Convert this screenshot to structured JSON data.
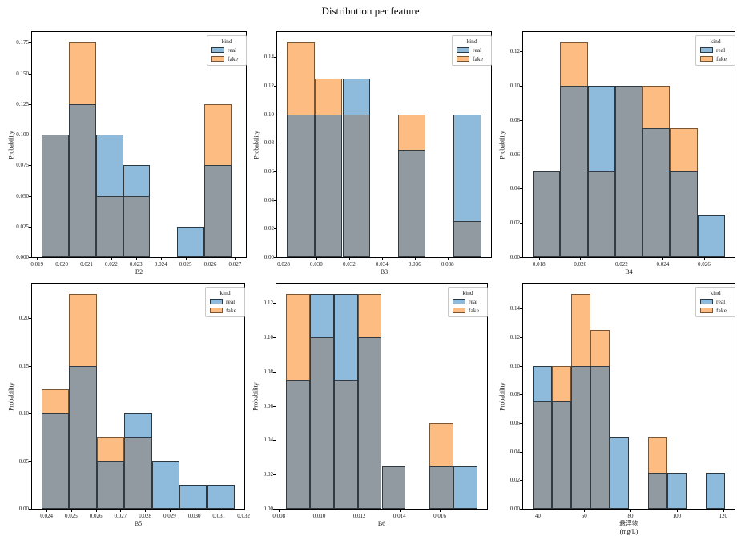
{
  "title": "Distribution per feature",
  "ylabel": "Probability",
  "legend": {
    "title": "kind",
    "entries": [
      {
        "label": "real",
        "key": "real"
      },
      {
        "label": "fake",
        "key": "fake"
      }
    ]
  },
  "colors": {
    "real": "#8ebbdb",
    "fake": "#fdbc82",
    "overlap": "#909aa0",
    "real_edge": "#2c3840",
    "fake_edge": "#7b5532",
    "overlap_edge": "#333b42",
    "spine": "#000000",
    "legend_border": "#c9c9c9"
  },
  "chart_data": [
    {
      "type": "bar",
      "feature": "B2",
      "xlabel_lines": [
        "B2"
      ],
      "ylabel": "Probability",
      "xlim": [
        0.0188,
        0.02744
      ],
      "ylim": [
        0,
        0.18375
      ],
      "grid": false,
      "legend_position": "upper right",
      "xticks": [
        {
          "label": "0.019",
          "v": 0.019
        },
        {
          "label": "0.020",
          "v": 0.02
        },
        {
          "label": "0.021",
          "v": 0.021
        },
        {
          "label": "0.022",
          "v": 0.022
        },
        {
          "label": "0.023",
          "v": 0.023
        },
        {
          "label": "0.024",
          "v": 0.024
        },
        {
          "label": "0.025",
          "v": 0.025
        },
        {
          "label": "0.026",
          "v": 0.026
        },
        {
          "label": "0.027",
          "v": 0.027
        }
      ],
      "yticks": [
        {
          "label": "0.000",
          "v": 0
        },
        {
          "label": "0.025",
          "v": 0.025
        },
        {
          "label": "0.050",
          "v": 0.05
        },
        {
          "label": "0.075",
          "v": 0.075
        },
        {
          "label": "0.100",
          "v": 0.1
        },
        {
          "label": "0.125",
          "v": 0.125
        },
        {
          "label": "0.150",
          "v": 0.15
        },
        {
          "label": "0.175",
          "v": 0.175
        }
      ],
      "bins": [
        {
          "x0": 0.0192,
          "x1": 0.02029,
          "real": 0.1,
          "fake": 0.1
        },
        {
          "x0": 0.02029,
          "x1": 0.02139,
          "real": 0.125,
          "fake": 0.175
        },
        {
          "x0": 0.02139,
          "x1": 0.02248,
          "real": 0.1,
          "fake": 0.05
        },
        {
          "x0": 0.02248,
          "x1": 0.02357,
          "real": 0.075,
          "fake": 0.05
        },
        {
          "x0": 0.02467,
          "x1": 0.02576,
          "real": 0.025,
          "fake": 0
        },
        {
          "x0": 0.02576,
          "x1": 0.02685,
          "real": 0.075,
          "fake": 0.125
        }
      ]
    },
    {
      "type": "bar",
      "feature": "B3",
      "xlabel_lines": [
        "B3"
      ],
      "ylabel": "Probability",
      "xlim": [
        0.02761,
        0.04065
      ],
      "ylim": [
        0,
        0.1575
      ],
      "grid": false,
      "legend_position": "upper right",
      "xticks": [
        {
          "label": "0.028",
          "v": 0.028
        },
        {
          "label": "0.030",
          "v": 0.03
        },
        {
          "label": "0.032",
          "v": 0.032
        },
        {
          "label": "0.034",
          "v": 0.034
        },
        {
          "label": "0.036",
          "v": 0.036
        },
        {
          "label": "0.038",
          "v": 0.038
        }
      ],
      "yticks": [
        {
          "label": "0.00",
          "v": 0
        },
        {
          "label": "0.02",
          "v": 0.02
        },
        {
          "label": "0.04",
          "v": 0.04
        },
        {
          "label": "0.06",
          "v": 0.06
        },
        {
          "label": "0.08",
          "v": 0.08
        },
        {
          "label": "0.10",
          "v": 0.1
        },
        {
          "label": "0.12",
          "v": 0.12
        },
        {
          "label": "0.14",
          "v": 0.14
        }
      ],
      "bins": [
        {
          "x0": 0.0282,
          "x1": 0.02989,
          "real": 0.1,
          "fake": 0.15
        },
        {
          "x0": 0.02989,
          "x1": 0.03159,
          "real": 0.1,
          "fake": 0.125
        },
        {
          "x0": 0.03159,
          "x1": 0.03328,
          "real": 0.125,
          "fake": 0.1
        },
        {
          "x0": 0.03498,
          "x1": 0.03667,
          "real": 0.075,
          "fake": 0.1
        },
        {
          "x0": 0.03837,
          "x1": 0.04006,
          "real": 0.1,
          "fake": 0.025
        }
      ]
    },
    {
      "type": "bar",
      "feature": "B4",
      "xlabel_lines": [
        "B4"
      ],
      "ylabel": "Probability",
      "xlim": [
        0.01723,
        0.02748
      ],
      "ylim": [
        0,
        0.13125
      ],
      "grid": false,
      "legend_position": "upper right",
      "xticks": [
        {
          "label": "0.018",
          "v": 0.018
        },
        {
          "label": "0.020",
          "v": 0.02
        },
        {
          "label": "0.022",
          "v": 0.022
        },
        {
          "label": "0.024",
          "v": 0.024
        },
        {
          "label": "0.026",
          "v": 0.026
        }
      ],
      "yticks": [
        {
          "label": "0.00",
          "v": 0
        },
        {
          "label": "0.02",
          "v": 0.02
        },
        {
          "label": "0.04",
          "v": 0.04
        },
        {
          "label": "0.06",
          "v": 0.06
        },
        {
          "label": "0.08",
          "v": 0.08
        },
        {
          "label": "0.10",
          "v": 0.1
        },
        {
          "label": "0.12",
          "v": 0.12
        }
      ],
      "bins": [
        {
          "x0": 0.0177,
          "x1": 0.01903,
          "real": 0.05,
          "fake": 0.05
        },
        {
          "x0": 0.01903,
          "x1": 0.02036,
          "real": 0.1,
          "fake": 0.125
        },
        {
          "x0": 0.02036,
          "x1": 0.02169,
          "real": 0.1,
          "fake": 0.05
        },
        {
          "x0": 0.02169,
          "x1": 0.02302,
          "real": 0.1,
          "fake": 0.1
        },
        {
          "x0": 0.02302,
          "x1": 0.02435,
          "real": 0.075,
          "fake": 0.1
        },
        {
          "x0": 0.02435,
          "x1": 0.02568,
          "real": 0.05,
          "fake": 0.075
        },
        {
          "x0": 0.02568,
          "x1": 0.02701,
          "real": 0.025,
          "fake": 0
        }
      ]
    },
    {
      "type": "bar",
      "feature": "B5",
      "xlabel_lines": [
        "B5"
      ],
      "ylabel": "Probability",
      "xlim": [
        0.02341,
        0.03203
      ],
      "ylim": [
        0,
        0.23625
      ],
      "grid": false,
      "legend_position": "upper right",
      "xticks": [
        {
          "label": "0.024",
          "v": 0.024
        },
        {
          "label": "0.025",
          "v": 0.025
        },
        {
          "label": "0.026",
          "v": 0.026
        },
        {
          "label": "0.027",
          "v": 0.027
        },
        {
          "label": "0.028",
          "v": 0.028
        },
        {
          "label": "0.029",
          "v": 0.029
        },
        {
          "label": "0.030",
          "v": 0.03
        },
        {
          "label": "0.031",
          "v": 0.031
        },
        {
          "label": "0.032",
          "v": 0.032
        }
      ],
      "yticks": [
        {
          "label": "0.00",
          "v": 0
        },
        {
          "label": "0.05",
          "v": 0.05
        },
        {
          "label": "0.10",
          "v": 0.1
        },
        {
          "label": "0.15",
          "v": 0.15
        },
        {
          "label": "0.20",
          "v": 0.2
        }
      ],
      "bins": [
        {
          "x0": 0.0238,
          "x1": 0.02492,
          "real": 0.1,
          "fake": 0.125
        },
        {
          "x0": 0.02492,
          "x1": 0.02604,
          "real": 0.15,
          "fake": 0.225
        },
        {
          "x0": 0.02604,
          "x1": 0.02716,
          "real": 0.05,
          "fake": 0.075
        },
        {
          "x0": 0.02716,
          "x1": 0.02828,
          "real": 0.1,
          "fake": 0.075
        },
        {
          "x0": 0.02828,
          "x1": 0.0294,
          "real": 0.05,
          "fake": 0
        },
        {
          "x0": 0.0294,
          "x1": 0.03052,
          "real": 0.025,
          "fake": 0
        },
        {
          "x0": 0.03052,
          "x1": 0.03164,
          "real": 0.025,
          "fake": 0
        }
      ]
    },
    {
      "type": "bar",
      "feature": "B6",
      "xlabel_lines": [
        "B6"
      ],
      "ylabel": "Probability",
      "xlim": [
        0.00787,
        0.01835
      ],
      "ylim": [
        0,
        0.13125
      ],
      "grid": false,
      "legend_position": "upper right",
      "xticks": [
        {
          "label": "0.008",
          "v": 0.008
        },
        {
          "label": "0.010",
          "v": 0.01
        },
        {
          "label": "0.012",
          "v": 0.012
        },
        {
          "label": "0.014",
          "v": 0.014
        },
        {
          "label": "0.016",
          "v": 0.016
        }
      ],
      "yticks": [
        {
          "label": "0.00",
          "v": 0
        },
        {
          "label": "0.02",
          "v": 0.02
        },
        {
          "label": "0.04",
          "v": 0.04
        },
        {
          "label": "0.06",
          "v": 0.06
        },
        {
          "label": "0.08",
          "v": 0.08
        },
        {
          "label": "0.10",
          "v": 0.1
        },
        {
          "label": "0.12",
          "v": 0.12
        }
      ],
      "bins": [
        {
          "x0": 0.00835,
          "x1": 0.00954,
          "real": 0.075,
          "fake": 0.125
        },
        {
          "x0": 0.00954,
          "x1": 0.01073,
          "real": 0.125,
          "fake": 0.1
        },
        {
          "x0": 0.01073,
          "x1": 0.01192,
          "real": 0.125,
          "fake": 0.075
        },
        {
          "x0": 0.01192,
          "x1": 0.01311,
          "real": 0.1,
          "fake": 0.125
        },
        {
          "x0": 0.01311,
          "x1": 0.0143,
          "real": 0.025,
          "fake": 0.025
        },
        {
          "x0": 0.01549,
          "x1": 0.01668,
          "real": 0.025,
          "fake": 0.05
        },
        {
          "x0": 0.01668,
          "x1": 0.01787,
          "real": 0.025,
          "fake": 0
        }
      ]
    },
    {
      "type": "bar",
      "feature": "悬浮物 (mg/L)",
      "xlabel_lines": [
        "悬浮物",
        "(mg/L)"
      ],
      "ylabel": "Probability",
      "xlim": [
        33.65,
        124.95
      ],
      "ylim": [
        0,
        0.1575
      ],
      "grid": false,
      "legend_position": "upper right",
      "xticks": [
        {
          "label": "40",
          "v": 40
        },
        {
          "label": "60",
          "v": 60
        },
        {
          "label": "80",
          "v": 80
        },
        {
          "label": "100",
          "v": 100
        },
        {
          "label": "120",
          "v": 120
        }
      ],
      "yticks": [
        {
          "label": "0.00",
          "v": 0
        },
        {
          "label": "0.02",
          "v": 0.02
        },
        {
          "label": "0.04",
          "v": 0.04
        },
        {
          "label": "0.06",
          "v": 0.06
        },
        {
          "label": "0.08",
          "v": 0.08
        },
        {
          "label": "0.10",
          "v": 0.1
        },
        {
          "label": "0.12",
          "v": 0.12
        },
        {
          "label": "0.14",
          "v": 0.14
        }
      ],
      "bins": [
        {
          "x0": 37.8,
          "x1": 46.1,
          "real": 0.1,
          "fake": 0.075
        },
        {
          "x0": 46.1,
          "x1": 54.4,
          "real": 0.075,
          "fake": 0.1
        },
        {
          "x0": 54.4,
          "x1": 62.7,
          "real": 0.1,
          "fake": 0.15
        },
        {
          "x0": 62.7,
          "x1": 71.0,
          "real": 0.1,
          "fake": 0.125
        },
        {
          "x0": 71.0,
          "x1": 79.3,
          "real": 0.05,
          "fake": 0
        },
        {
          "x0": 87.6,
          "x1": 95.9,
          "real": 0.025,
          "fake": 0.05
        },
        {
          "x0": 95.9,
          "x1": 104.2,
          "real": 0.025,
          "fake": 0
        },
        {
          "x0": 112.5,
          "x1": 120.8,
          "real": 0.025,
          "fake": 0
        }
      ]
    }
  ]
}
